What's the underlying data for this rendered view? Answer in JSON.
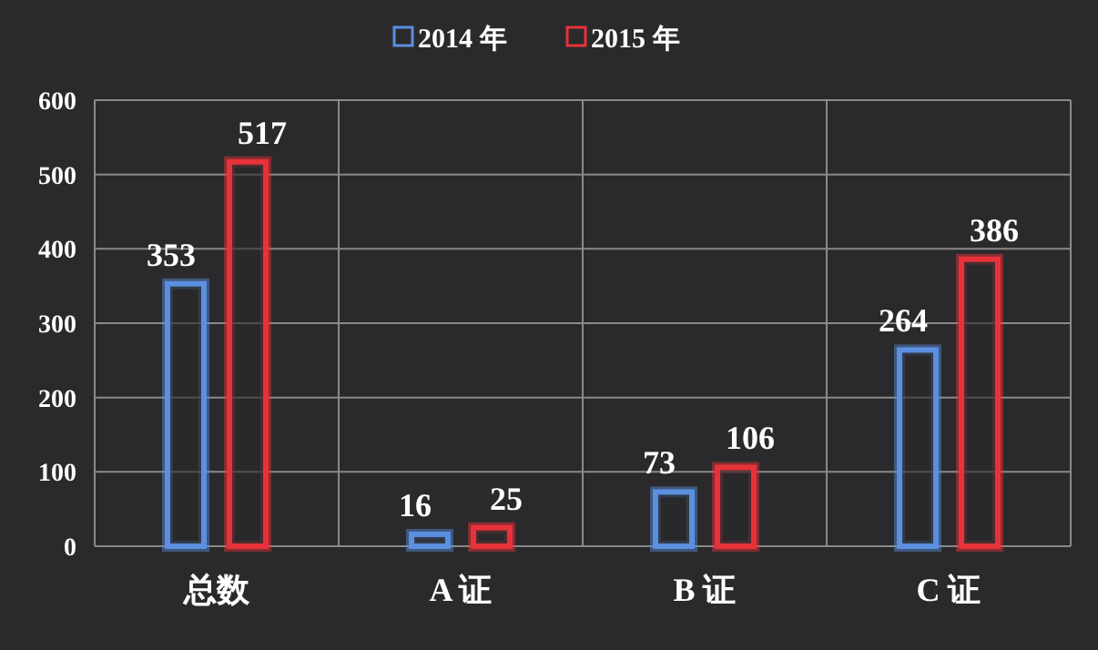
{
  "chart_data": {
    "type": "bar",
    "categories": [
      "总数",
      "A 证",
      "B 证",
      "C 证"
    ],
    "series": [
      {
        "name": "2014 年",
        "color": "#5b8fe0",
        "values": [
          353,
          16,
          73,
          264
        ]
      },
      {
        "name": "2015 年",
        "color": "#e8323a",
        "values": [
          517,
          25,
          106,
          386
        ]
      }
    ],
    "ylim": [
      0,
      600
    ],
    "yticks": [
      0,
      100,
      200,
      300,
      400,
      500,
      600
    ],
    "grid": true,
    "legend": "top",
    "data_labels": true
  }
}
